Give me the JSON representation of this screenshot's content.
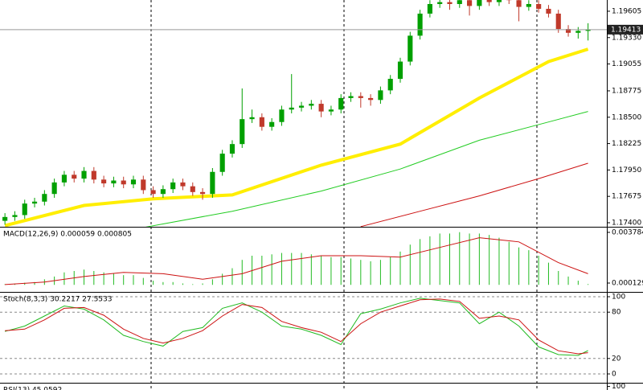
{
  "chart_data": [
    {
      "type": "candlestick",
      "xlim": [
        -0.5,
        60.9
      ],
      "ylim": [
        1.17358,
        1.19722
      ],
      "yticks": [
        1.19605,
        {
          "value": 1.1933,
          "label": "1.19330"
        },
        1.19055,
        1.18775,
        {
          "value": 1.185,
          "label": "1.18500"
        },
        1.18225,
        {
          "value": 1.1795,
          "label": "1.17950"
        },
        1.17675,
        {
          "value": 1.174,
          "label": "1.17400"
        }
      ],
      "up_color": "#00a000",
      "down_color": "#c0392b",
      "last_price": 1.19413,
      "open": [
        1.1742,
        1.1746,
        1.1748,
        1.176,
        1.1762,
        1.177,
        1.1782,
        1.179,
        1.1786,
        1.1794,
        1.1785,
        1.1781,
        1.1784,
        1.178,
        1.1785,
        1.1774,
        1.177,
        1.1775,
        1.1782,
        1.1778,
        1.1772,
        1.177,
        1.1793,
        1.1812,
        1.1822,
        1.1848,
        1.185,
        1.184,
        1.1845,
        1.1858,
        1.186,
        1.1862,
        1.1864,
        1.1856,
        1.1858,
        1.187,
        1.1872,
        1.187,
        1.1868,
        1.1878,
        1.189,
        1.1908,
        1.1935,
        1.1958,
        1.1968,
        1.197,
        1.1968,
        1.1972,
        1.1966,
        1.1975,
        1.197,
        1.1974,
        1.1972,
        1.1965,
        1.1968,
        1.1963,
        1.1958,
        1.1942,
        1.1938,
        1.194
      ],
      "high": [
        1.175,
        1.1752,
        1.1764,
        1.1766,
        1.1774,
        1.1786,
        1.1794,
        1.1794,
        1.1798,
        1.1798,
        1.1789,
        1.1788,
        1.1788,
        1.1789,
        1.1789,
        1.1778,
        1.1779,
        1.1786,
        1.1786,
        1.1782,
        1.1776,
        1.1797,
        1.1816,
        1.1826,
        1.188,
        1.1858,
        1.1854,
        1.1849,
        1.1862,
        1.1895,
        1.1866,
        1.1868,
        1.1868,
        1.1862,
        1.1874,
        1.1876,
        1.1876,
        1.1874,
        1.1882,
        1.1894,
        1.1912,
        1.1939,
        1.1962,
        1.1972,
        1.1974,
        1.1974,
        1.1976,
        1.1976,
        1.1979,
        1.1979,
        1.1978,
        1.1978,
        1.1976,
        1.1972,
        1.1972,
        1.1967,
        1.1962,
        1.1946,
        1.1944,
        1.1948
      ],
      "low": [
        1.1738,
        1.1742,
        1.1744,
        1.1756,
        1.1758,
        1.1766,
        1.1778,
        1.1782,
        1.1782,
        1.1781,
        1.1777,
        1.1777,
        1.1776,
        1.1776,
        1.177,
        1.1766,
        1.1766,
        1.1771,
        1.1774,
        1.1768,
        1.1764,
        1.1766,
        1.1789,
        1.1808,
        1.1818,
        1.1844,
        1.1836,
        1.1836,
        1.1841,
        1.1854,
        1.1856,
        1.1858,
        1.185,
        1.1852,
        1.1854,
        1.1866,
        1.186,
        1.1862,
        1.1864,
        1.1874,
        1.1886,
        1.1904,
        1.1931,
        1.1954,
        1.1964,
        1.1962,
        1.1964,
        1.1956,
        1.1962,
        1.1966,
        1.1966,
        1.1968,
        1.195,
        1.1961,
        1.1959,
        1.1954,
        1.1938,
        1.1934,
        1.1932,
        1.193
      ],
      "close": [
        1.1746,
        1.1748,
        1.176,
        1.1762,
        1.177,
        1.1782,
        1.179,
        1.1786,
        1.1794,
        1.1785,
        1.1781,
        1.1784,
        1.178,
        1.1785,
        1.1774,
        1.177,
        1.1775,
        1.1782,
        1.1778,
        1.1772,
        1.177,
        1.1793,
        1.1812,
        1.1822,
        1.1848,
        1.185,
        1.184,
        1.1845,
        1.1858,
        1.186,
        1.1862,
        1.1864,
        1.1856,
        1.1858,
        1.187,
        1.1872,
        1.187,
        1.1868,
        1.1878,
        1.189,
        1.1908,
        1.1935,
        1.1958,
        1.1968,
        1.197,
        1.1968,
        1.1972,
        1.1966,
        1.1975,
        1.197,
        1.1974,
        1.1972,
        1.1965,
        1.1968,
        1.1963,
        1.1958,
        1.1942,
        1.1938,
        1.194,
        1.19413
      ],
      "series": [
        {
          "color": "#ffee00",
          "width": 4,
          "x": [
            0,
            8,
            15,
            23,
            32,
            40,
            48,
            55,
            59
          ],
          "values": [
            1.1737,
            1.1758,
            1.1765,
            1.1769,
            1.18,
            1.1822,
            1.187,
            1.1908,
            1.1921
          ]
        },
        {
          "color": "#22cc22",
          "width": 1,
          "x": [
            14,
            23,
            32,
            40,
            48,
            55,
            59
          ],
          "values": [
            1.1735,
            1.1752,
            1.1773,
            1.1796,
            1.1826,
            1.1845,
            1.1856
          ]
        },
        {
          "color": "#cc1111",
          "width": 1,
          "x": [
            36,
            42,
            48,
            54,
            59
          ],
          "values": [
            1.1736,
            1.1752,
            1.1768,
            1.1786,
            1.1802
          ]
        }
      ]
    },
    {
      "type": "bar",
      "title": "MACD(12,26,9) 0.000059 0.000805",
      "xlim": [
        -0.5,
        60.9
      ],
      "ylim": [
        -0.00045,
        0.00413
      ],
      "yticks": [
        0.003784,
        0.000129
      ],
      "color": "#22bb22",
      "values": [
        5e-05,
        8e-05,
        0.00015,
        0.0002,
        0.0004,
        0.0006,
        0.0009,
        0.001,
        0.0011,
        0.001,
        0.0009,
        0.0008,
        0.0007,
        0.0007,
        0.0005,
        0.0003,
        0.0002,
        0.0002,
        0.0001,
        5e-05,
        0.0001,
        0.0004,
        0.0008,
        0.0012,
        0.0018,
        0.0021,
        0.0021,
        0.0022,
        0.0023,
        0.0023,
        0.0023,
        0.0022,
        0.0021,
        0.002,
        0.002,
        0.0019,
        0.0018,
        0.0017,
        0.0018,
        0.002,
        0.0024,
        0.0029,
        0.0033,
        0.0035,
        0.0037,
        0.0037,
        0.0038,
        0.0037,
        0.0037,
        0.0036,
        0.0034,
        0.0031,
        0.0027,
        0.0025,
        0.0021,
        0.0016,
        0.001,
        0.0006,
        0.0003,
        5.9e-05
      ],
      "series": [
        {
          "color": "#cc1111",
          "width": 1,
          "x": [
            0,
            4,
            8,
            12,
            16,
            20,
            24,
            28,
            32,
            36,
            40,
            44,
            48,
            52,
            56,
            59
          ],
          "values": [
            2e-05,
            0.0002,
            0.0006,
            0.0009,
            0.0008,
            0.0004,
            0.0008,
            0.0017,
            0.0021,
            0.0021,
            0.002,
            0.0027,
            0.0034,
            0.0031,
            0.0016,
            0.000805
          ]
        }
      ]
    },
    {
      "type": "line",
      "title": "Stoch(8,3,3) 30.2217 27.5533",
      "xlim": [
        -0.5,
        60.9
      ],
      "ylim": [
        -10.4,
        105.2
      ],
      "yticks": [
        0,
        20,
        80,
        100
      ],
      "grid": true,
      "series": [
        {
          "color": "#22bb22",
          "width": 1,
          "x": [
            0,
            2,
            4,
            6,
            8,
            10,
            12,
            14,
            16,
            18,
            20,
            22,
            24,
            26,
            28,
            30,
            32,
            34,
            36,
            38,
            40,
            42,
            44,
            46,
            48,
            50,
            52,
            54,
            56,
            58,
            59
          ],
          "values": [
            55,
            62,
            75,
            88,
            84,
            70,
            50,
            42,
            36,
            55,
            60,
            85,
            92,
            80,
            62,
            58,
            50,
            38,
            78,
            84,
            92,
            98,
            95,
            92,
            65,
            80,
            62,
            35,
            25,
            24,
            30.2217
          ]
        },
        {
          "color": "#cc1111",
          "width": 1,
          "x": [
            0,
            2,
            4,
            6,
            8,
            10,
            12,
            14,
            16,
            18,
            20,
            22,
            24,
            26,
            28,
            30,
            32,
            34,
            36,
            38,
            40,
            42,
            44,
            46,
            48,
            50,
            52,
            54,
            56,
            58,
            59
          ],
          "values": [
            56,
            58,
            70,
            85,
            86,
            76,
            58,
            46,
            40,
            46,
            56,
            75,
            90,
            86,
            68,
            60,
            54,
            42,
            65,
            80,
            88,
            96,
            97,
            94,
            72,
            75,
            70,
            44,
            30,
            26,
            27.5533
          ]
        }
      ]
    },
    {
      "type": "line",
      "title": "RSI(13) 45.0592",
      "xlim": [
        -0.5,
        60.9
      ],
      "ylim": [
        0,
        103
      ],
      "yticks": [
        100
      ],
      "series": []
    }
  ]
}
